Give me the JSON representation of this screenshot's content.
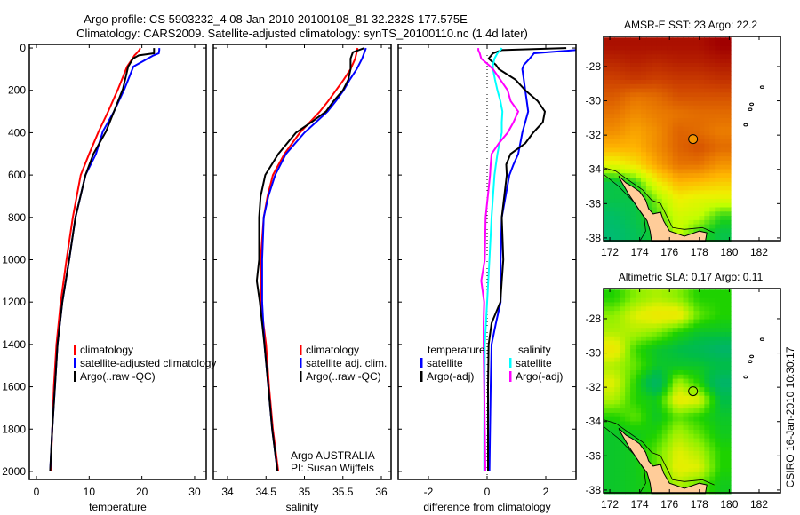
{
  "title": {
    "line1": "Argo profile: CS 5903232_4 08-Jan-2010 20100108_81 32.232S 177.575E",
    "line2": "Climatology: CARS2009. Satellite-adjusted climatology: synTS_20100110.nc (1.4d later)"
  },
  "credit": {
    "line1": "Argo AUSTRALIA",
    "line2": "PI: Susan Wijffels"
  },
  "timestamp": "CSIRO 16-Jan-2010 10:30:17",
  "colors": {
    "climatology": "#ff0000",
    "satellite": "#0000ff",
    "argo": "#000000",
    "sal_satellite": "#00ffff",
    "sal_argo": "#ff00ff",
    "land": "#ffcc99"
  },
  "chart_data": [
    {
      "type": "line",
      "id": "temperature",
      "xlabel": "temperature",
      "ylabel": "",
      "xlim": [
        -1.35,
        32.2
      ],
      "ylim": [
        -17,
        2038
      ],
      "y_reversed": true,
      "xticks": [
        0,
        10,
        20,
        30
      ],
      "yticks": [
        0,
        200,
        400,
        600,
        800,
        1000,
        1200,
        1400,
        1600,
        1800,
        2000
      ],
      "legend": [
        "climatology",
        "satellite-adjusted climatology",
        "Argo(..raw -QC)"
      ],
      "depth": [
        0,
        10,
        25,
        35,
        50,
        88,
        193,
        300,
        394,
        500,
        600,
        800,
        1000,
        1200,
        1400,
        1600,
        1800,
        2000
      ],
      "series": [
        {
          "name": "climatology",
          "color": "#ff0000",
          "values": [
            19.7,
            19.5,
            19.0,
            18.6,
            18.2,
            17.2,
            15.5,
            13.6,
            11.8,
            10.0,
            8.4,
            6.9,
            5.7,
            4.6,
            3.8,
            3.3,
            3.0,
            2.7
          ]
        },
        {
          "name": "satellite-adjusted climatology",
          "color": "#0000ff",
          "values": [
            23.3,
            23.3,
            23.2,
            22.2,
            21.1,
            18.4,
            16.7,
            14.7,
            12.6,
            11.3,
            9.3,
            7.4,
            6.2,
            4.9,
            4.0,
            3.5,
            3.0,
            2.6
          ]
        },
        {
          "name": "Argo(..raw -QC)",
          "color": "#000000",
          "values": [
            22.3,
            22.3,
            22.3,
            19.4,
            18.3,
            17.4,
            16.4,
            14.7,
            13.2,
            10.8,
            9.3,
            7.4,
            6.2,
            4.9,
            4.0,
            3.5,
            3.0,
            2.6
          ]
        }
      ]
    },
    {
      "type": "line",
      "id": "salinity",
      "xlabel": "salinity",
      "xlim": [
        33.815,
        36.127
      ],
      "ylim": [
        -17,
        2038
      ],
      "y_reversed": true,
      "xticks": [
        34,
        34.5,
        35,
        35.5,
        36
      ],
      "legend": [
        "climatology",
        "satellite adj. clim.",
        "Argo(..raw -QC)"
      ],
      "depth": [
        0,
        20,
        50,
        100,
        150,
        200,
        250,
        300,
        350,
        400,
        500,
        600,
        700,
        800,
        1000,
        1100,
        1200,
        1400,
        1600,
        1800,
        2000
      ],
      "series": [
        {
          "name": "climatology",
          "color": "#ff0000",
          "values": [
            35.69,
            35.68,
            35.66,
            35.6,
            35.51,
            35.41,
            35.31,
            35.2,
            35.07,
            34.94,
            34.74,
            34.59,
            34.52,
            34.47,
            34.43,
            34.43,
            34.43,
            34.5,
            34.54,
            34.59,
            34.66
          ]
        },
        {
          "name": "satellite adj. clim.",
          "color": "#0000ff",
          "values": [
            35.8,
            35.78,
            35.75,
            35.68,
            35.59,
            35.51,
            35.41,
            35.3,
            35.15,
            35.0,
            34.76,
            34.62,
            34.53,
            34.47,
            34.45,
            34.45,
            34.45,
            34.48,
            34.53,
            34.58,
            34.65
          ]
        },
        {
          "name": "Argo(..raw -QC)",
          "color": "#000000",
          "values": [
            35.78,
            35.63,
            35.6,
            35.6,
            35.57,
            35.5,
            35.38,
            35.28,
            35.09,
            34.89,
            34.66,
            34.49,
            34.43,
            34.41,
            34.41,
            34.38,
            34.42,
            34.48,
            34.53,
            34.58,
            34.65
          ]
        }
      ]
    },
    {
      "type": "line",
      "id": "difference",
      "xlabel": "difference from climatology",
      "xlim": [
        -3.03,
        3.03
      ],
      "ylim": [
        -17,
        2038
      ],
      "y_reversed": true,
      "xticks": [
        -2,
        0,
        2
      ],
      "zero_line": true,
      "legend_groups": [
        {
          "title": "temperature",
          "entries": [
            "satellite",
            "Argo(-adj)"
          ]
        },
        {
          "title": "salinity",
          "entries": [
            "satellite",
            "Argo(-adj)"
          ]
        }
      ],
      "depth": [
        0,
        10,
        25,
        50,
        80,
        100,
        150,
        200,
        250,
        300,
        350,
        400,
        450,
        500,
        550,
        600,
        800,
        1000,
        1100,
        1200,
        1300,
        1400,
        1600,
        1800,
        2000
      ],
      "series": [
        {
          "name": "temperature satellite",
          "color": "#0000ff",
          "values": [
            3.2,
            3.0,
            1.6,
            1.45,
            1.25,
            1.2,
            1.25,
            1.3,
            1.35,
            1.4,
            1.3,
            1.2,
            1.13,
            1.06,
            0.9,
            0.76,
            0.5,
            0.46,
            0.46,
            0.46,
            0.3,
            0.15,
            0.12,
            0.1,
            0.08
          ]
        },
        {
          "name": "temperature Argo(-adj)",
          "color": "#000000",
          "values": [
            2.7,
            0.5,
            0.2,
            0.05,
            0.3,
            0.4,
            0.97,
            1.3,
            1.72,
            1.97,
            1.9,
            1.57,
            1.3,
            0.8,
            0.65,
            0.67,
            0.5,
            0.55,
            0.5,
            0.45,
            0.15,
            0.05,
            0.03,
            0.03,
            0.03
          ]
        },
        {
          "name": "salinity satellite",
          "color": "#00ffff",
          "values": [
            0.5,
            0.45,
            0.35,
            0.25,
            0.2,
            0.2,
            0.27,
            0.35,
            0.45,
            0.52,
            0.5,
            0.5,
            0.42,
            0.35,
            0.3,
            0.25,
            0.15,
            0.08,
            0.04,
            0.0,
            -0.04,
            -0.08,
            -0.09,
            -0.1,
            -0.1
          ]
        },
        {
          "name": "salinity Argo(-adj)",
          "color": "#ff00ff",
          "values": [
            -0.3,
            -0.3,
            -0.25,
            -0.2,
            0.05,
            0.2,
            0.45,
            0.7,
            0.8,
            1.06,
            0.9,
            0.7,
            0.4,
            0.15,
            0.12,
            0.1,
            -0.05,
            -0.08,
            -0.2,
            -0.1,
            -0.12,
            -0.12,
            -0.1,
            -0.08,
            -0.06
          ]
        }
      ]
    },
    {
      "type": "heatmap",
      "id": "sst-map",
      "title": "AMSR-E SST: 23 Argo: 22.2",
      "xlim": [
        171.58,
        183.43
      ],
      "ylim": [
        -38.16,
        -26.24
      ],
      "xticks": [
        172,
        174,
        176,
        178,
        180,
        182
      ],
      "yticks": [
        -28,
        -30,
        -32,
        -34,
        -36,
        -38
      ],
      "grid_lon_range": [
        171.6,
        180.1
      ],
      "grid_lat_range": [
        -26.3,
        -38.2
      ],
      "clim": [
        18,
        24
      ],
      "marker": {
        "lon": 177.575,
        "lat": -32.232,
        "value": 22.2
      },
      "values": [
        [
          23.8,
          23.8,
          23.8,
          23.8,
          23.8,
          24.0
        ],
        [
          23.5,
          23.6,
          23.5,
          23.6,
          23.6,
          23.7
        ],
        [
          23.2,
          23.3,
          23.2,
          23.3,
          23.3,
          23.4
        ],
        [
          22.9,
          22.6,
          22.7,
          23.0,
          23.0,
          23.0
        ],
        [
          22.6,
          22.3,
          22.5,
          22.6,
          22.7,
          22.7
        ],
        [
          22.3,
          22.0,
          22.3,
          22.8,
          22.7,
          22.5
        ],
        [
          21.8,
          21.8,
          22.3,
          22.8,
          23.0,
          22.7
        ],
        [
          20.8,
          21.2,
          22.0,
          22.6,
          22.6,
          22.2
        ],
        [
          19.0,
          19.5,
          21.0,
          21.8,
          21.7,
          21.5
        ],
        [
          19.0,
          19.0,
          20.0,
          21.0,
          20.8,
          20.8
        ],
        [
          18.8,
          19.0,
          19.6,
          20.6,
          20.4,
          19.5
        ],
        [
          18.7,
          18.9,
          19.2,
          20.4,
          19.5,
          19.0
        ]
      ]
    },
    {
      "type": "heatmap",
      "id": "sla-map",
      "title": "Altimetric SLA: 0.17 Argo: 0.11",
      "xlim": [
        171.58,
        183.43
      ],
      "ylim": [
        -38.16,
        -26.24
      ],
      "xticks": [
        172,
        174,
        176,
        178,
        180,
        182
      ],
      "yticks": [
        -28,
        -30,
        -32,
        -34,
        -36,
        -38
      ],
      "grid_lon_range": [
        171.6,
        180.1
      ],
      "grid_lat_range": [
        -26.3,
        -38.2
      ],
      "clim": [
        -0.1,
        0.2
      ],
      "marker": {
        "lon": 177.575,
        "lat": -32.232,
        "value": 0.11
      },
      "values": [
        [
          0.05,
          0.1,
          0.12,
          0.1,
          0.05,
          0.05
        ],
        [
          0.1,
          0.15,
          0.18,
          0.18,
          0.08,
          0.05
        ],
        [
          0.12,
          0.12,
          0.1,
          0.05,
          0.02,
          0.02
        ],
        [
          0.18,
          0.06,
          0.02,
          0.0,
          -0.02,
          -0.05
        ],
        [
          0.12,
          0.08,
          0.02,
          0.02,
          0.02,
          0.0
        ],
        [
          0.15,
          0.05,
          -0.05,
          0.12,
          0.05,
          -0.05
        ],
        [
          0.12,
          0.05,
          0.03,
          0.17,
          0.15,
          0.0
        ],
        [
          0.05,
          0.08,
          0.02,
          0.08,
          0.05,
          0.02
        ],
        [
          0.02,
          0.03,
          0.05,
          0.12,
          0.08,
          0.03
        ],
        [
          0.02,
          0.03,
          0.08,
          0.15,
          0.12,
          0.05
        ],
        [
          0.02,
          0.03,
          0.08,
          0.16,
          0.15,
          0.05
        ],
        [
          0.02,
          0.03,
          0.05,
          0.12,
          0.08,
          0.03
        ]
      ]
    }
  ]
}
